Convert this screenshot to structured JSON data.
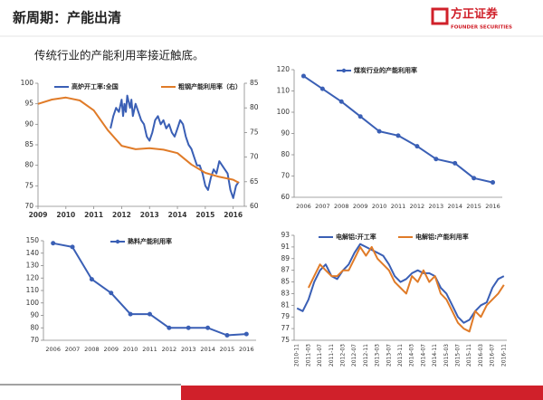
{
  "header": {
    "title": "新周期：产能出清",
    "logo_cn": "方正证券",
    "logo_en": "FOUNDER SECURITIES"
  },
  "subtitle": "传统行业的产能利用率接近触底。",
  "chart_data": [
    {
      "type": "line",
      "xlim": [
        2009,
        2016.4
      ],
      "xticks": [
        2009,
        2010,
        2011,
        2012,
        2013,
        2014,
        2015,
        2016
      ],
      "ylim": [
        70,
        100
      ],
      "yticks": [
        70,
        75,
        80,
        85,
        90,
        95,
        100
      ],
      "y2lim": [
        60,
        85
      ],
      "y2ticks": [
        60,
        65,
        70,
        75,
        80,
        85
      ],
      "series": [
        {
          "name": "高炉开工率:全国",
          "color": "#3a5fb5",
          "x": [
            2011.6,
            2011.7,
            2011.8,
            2011.9,
            2012.0,
            2012.05,
            2012.1,
            2012.15,
            2012.2,
            2012.3,
            2012.35,
            2012.4,
            2012.5,
            2012.6,
            2012.7,
            2012.8,
            2012.9,
            2013.0,
            2013.1,
            2013.2,
            2013.3,
            2013.4,
            2013.5,
            2013.6,
            2013.7,
            2013.8,
            2013.9,
            2014.0,
            2014.1,
            2014.2,
            2014.3,
            2014.4,
            2014.5,
            2014.6,
            2014.7,
            2014.8,
            2014.9,
            2015.0,
            2015.1,
            2015.2,
            2015.3,
            2015.4,
            2015.5,
            2015.6,
            2015.7,
            2015.8,
            2015.9,
            2016.0,
            2016.1,
            2016.2
          ],
          "values": [
            89,
            92,
            94,
            93,
            96,
            92,
            95,
            93,
            97,
            94,
            96,
            92,
            95,
            93,
            91,
            90,
            87,
            86,
            88,
            91,
            92,
            90,
            91,
            89,
            90,
            88,
            87,
            89,
            91,
            90,
            87,
            85,
            84,
            82,
            80,
            80,
            78,
            75,
            74,
            77,
            79,
            78,
            81,
            80,
            79,
            78,
            74,
            72,
            75,
            76
          ]
        },
        {
          "name": "粗钢产能利用率（右）",
          "color": "#e07b28",
          "axis": "y2",
          "x": [
            2009,
            2009.5,
            2010,
            2010.5,
            2011,
            2011.5,
            2012,
            2012.5,
            2013,
            2013.5,
            2014,
            2014.5,
            2015,
            2015.5,
            2016,
            2016.2
          ],
          "values": [
            80.8,
            81.7,
            82.1,
            81.5,
            79.5,
            75.5,
            72.3,
            71.6,
            71.8,
            71.5,
            70.8,
            68.5,
            66.8,
            66.0,
            65.4,
            64.8
          ]
        }
      ]
    },
    {
      "type": "line",
      "markers": true,
      "categories": [
        "2006",
        "2007",
        "2008",
        "2009",
        "2010",
        "2011",
        "2012",
        "2013",
        "2014",
        "2015",
        "2016"
      ],
      "ylim": [
        60,
        120
      ],
      "yticks": [
        60,
        70,
        80,
        90,
        100,
        110,
        120
      ],
      "series": [
        {
          "name": "煤炭行业的产能利用率",
          "color": "#3a5fb5",
          "values": [
            117,
            111,
            105,
            98,
            91,
            89,
            84,
            78,
            76,
            69,
            67
          ]
        }
      ]
    },
    {
      "type": "line",
      "markers": true,
      "categories": [
        "2006",
        "2007",
        "2008",
        "2009",
        "2010",
        "2011",
        "2012",
        "2013",
        "2014",
        "2015",
        "2016"
      ],
      "ylim": [
        70,
        150
      ],
      "yticks": [
        70,
        80,
        90,
        100,
        110,
        120,
        130,
        140,
        150
      ],
      "series": [
        {
          "name": "熟料产能利用率",
          "color": "#3a5fb5",
          "values": [
            148,
            145,
            119,
            108,
            91,
            91,
            80,
            80,
            80,
            74,
            75
          ]
        }
      ]
    },
    {
      "type": "line",
      "rotate_labels": true,
      "categories": [
        "2010-11",
        null,
        "2011-03",
        null,
        "2011-07",
        null,
        "2011-11",
        null,
        "2012-03",
        null,
        "2012-07",
        null,
        "2012-11",
        null,
        "2013-03",
        null,
        "2013-07",
        null,
        "2013-11",
        null,
        "2014-03",
        null,
        "2014-07",
        null,
        "2014-11",
        null,
        "2015-03",
        null,
        "2015-07",
        null,
        "2015-11",
        null,
        "2016-03",
        null,
        "2016-07",
        null,
        "2016-11"
      ],
      "ylim": [
        75,
        93
      ],
      "yticks": [
        75,
        77,
        79,
        81,
        83,
        85,
        87,
        89,
        91,
        93
      ],
      "series": [
        {
          "name": "电解铝:开工率",
          "color": "#3a5fb5",
          "values": [
            80.5,
            80,
            82,
            85,
            87,
            88,
            86,
            85.5,
            87,
            88,
            90,
            91.5,
            91,
            90.5,
            90,
            89.5,
            88,
            86,
            85,
            85.5,
            86.5,
            87,
            86.5,
            86.5,
            86,
            84,
            83,
            81,
            79,
            78,
            78.5,
            80,
            81,
            81.5,
            84,
            85.5,
            86
          ]
        },
        {
          "name": "电解铝:产能利用率",
          "color": "#e07b28",
          "values": [
            null,
            null,
            84,
            86,
            88,
            87,
            86,
            86,
            87,
            87,
            89,
            91,
            89.5,
            91,
            89,
            88,
            87,
            85,
            84,
            83,
            86,
            85,
            87,
            85,
            86,
            83,
            82,
            80,
            78,
            77,
            76.5,
            80,
            79,
            81,
            82,
            83,
            84.5
          ]
        }
      ]
    }
  ]
}
